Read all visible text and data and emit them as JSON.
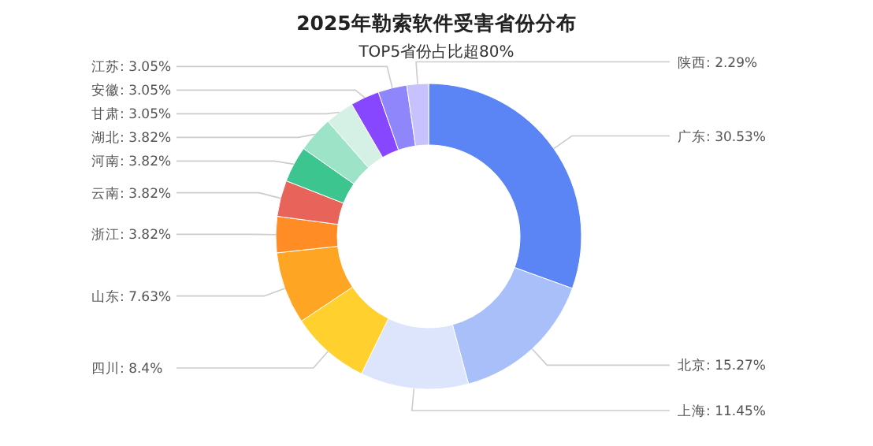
{
  "chart_data": {
    "type": "donut",
    "title": "2025年勒索软件受害省份分布",
    "subtitle": "TOP5省份占比超80%",
    "categories": [
      "广东",
      "北京",
      "上海",
      "四川",
      "山东",
      "浙江",
      "云南",
      "河南",
      "湖北",
      "甘肃",
      "安徽",
      "江苏",
      "陕西"
    ],
    "values": [
      30.53,
      15.27,
      11.45,
      8.4,
      7.63,
      3.82,
      3.82,
      3.82,
      3.82,
      3.05,
      3.05,
      3.05,
      2.29
    ],
    "value_labels": [
      "30.53%",
      "15.27%",
      "11.45%",
      "8.4%",
      "7.63%",
      "3.82%",
      "3.82%",
      "3.82%",
      "3.82%",
      "3.05%",
      "3.05%",
      "3.05%",
      "2.29%"
    ],
    "colors": [
      "#5b84f5",
      "#a9bffa",
      "#dce5fc",
      "#ffd02e",
      "#ffa524",
      "#ff8c24",
      "#e8645a",
      "#3cc58f",
      "#9de3c7",
      "#d5f0e5",
      "#8747ff",
      "#8f86fb",
      "#c7c2fd"
    ]
  }
}
